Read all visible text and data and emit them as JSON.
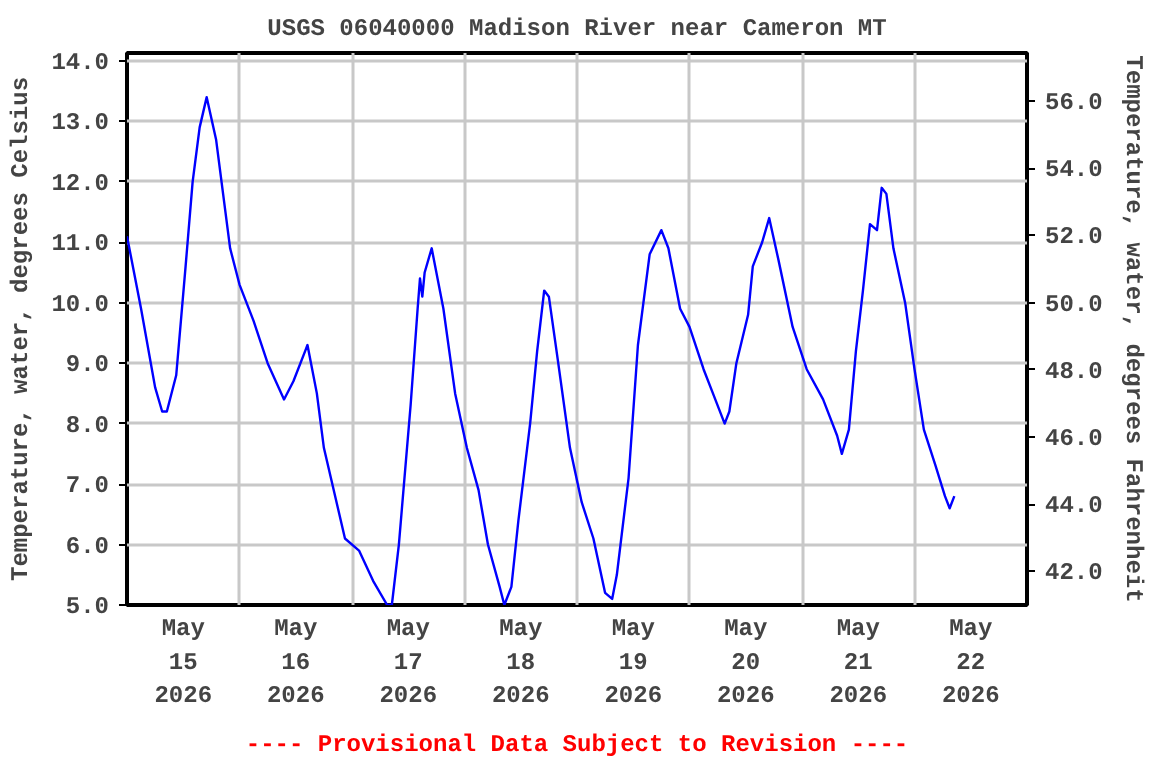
{
  "chart_data": {
    "type": "line",
    "title": "USGS 06040000 Madison River near Cameron MT",
    "ylabel": "Temperature, water, degrees Celsius",
    "y2label": "Temperature, water, degrees Fahrenheit",
    "annotations": [
      "---- Provisional Data Subject to Revision ----"
    ],
    "x": [
      "2026-05-15T00:00",
      "2026-05-15T03:00",
      "2026-05-15T06:00",
      "2026-05-15T07:30",
      "2026-05-15T08:30",
      "2026-05-15T10:30",
      "2026-05-15T12:30",
      "2026-05-15T14:00",
      "2026-05-15T15:30",
      "2026-05-15T17:00",
      "2026-05-15T19:00",
      "2026-05-15T22:00",
      "2026-05-16T00:00",
      "2026-05-16T03:00",
      "2026-05-16T06:00",
      "2026-05-16T09:30",
      "2026-05-16T11:30",
      "2026-05-16T14:00",
      "2026-05-16T14:30",
      "2026-05-16T16:30",
      "2026-05-16T18:00",
      "2026-05-16T21:00",
      "2026-05-16T22:30",
      "2026-05-17T01:30",
      "2026-05-17T04:30",
      "2026-05-17T07:30",
      "2026-05-17T08:30",
      "2026-05-17T10:00",
      "2026-05-17T12:30",
      "2026-05-17T14:00",
      "2026-05-17T14:30",
      "2026-05-17T15:00",
      "2026-05-17T15:30",
      "2026-05-17T17:00",
      "2026-05-17T19:30",
      "2026-05-17T22:00",
      "2026-05-18T00:30",
      "2026-05-18T03:00",
      "2026-05-18T05:00",
      "2026-05-18T07:30",
      "2026-05-18T08:30",
      "2026-05-18T10:00",
      "2026-05-18T11:30",
      "2026-05-18T14:00",
      "2026-05-18T15:30",
      "2026-05-18T17:00",
      "2026-05-18T18:00",
      "2026-05-18T20:00",
      "2026-05-18T22:30",
      "2026-05-19T01:00",
      "2026-05-19T03:30",
      "2026-05-19T06:00",
      "2026-05-19T07:30",
      "2026-05-19T08:30",
      "2026-05-19T11:00",
      "2026-05-19T13:00",
      "2026-05-19T15:30",
      "2026-05-19T18:00",
      "2026-05-19T19:30",
      "2026-05-19T22:00",
      "2026-05-20T00:00",
      "2026-05-20T03:00",
      "2026-05-20T05:00",
      "2026-05-20T07:30",
      "2026-05-20T08:30",
      "2026-05-20T10:00",
      "2026-05-20T12:30",
      "2026-05-20T13:30",
      "2026-05-20T15:30",
      "2026-05-20T17:00",
      "2026-05-20T19:00",
      "2026-05-20T22:00",
      "2026-05-21T01:00",
      "2026-05-21T04:30",
      "2026-05-21T07:30",
      "2026-05-21T08:30",
      "2026-05-21T10:00",
      "2026-05-21T11:30",
      "2026-05-21T13:00",
      "2026-05-21T14:30",
      "2026-05-21T16:00",
      "2026-05-21T17:00",
      "2026-05-21T18:00",
      "2026-05-21T19:30",
      "2026-05-21T22:00",
      "2026-05-22T00:00",
      "2026-05-22T02:00",
      "2026-05-22T04:30",
      "2026-05-22T06:30",
      "2026-05-22T07:30",
      "2026-05-22T08:30"
    ],
    "series": [
      {
        "color": "#0000ff",
        "values": [
          11.1,
          9.9,
          8.6,
          8.2,
          8.2,
          8.8,
          10.6,
          12.0,
          12.9,
          13.4,
          12.7,
          10.9,
          10.3,
          9.7,
          9.0,
          8.4,
          8.7,
          9.2,
          9.3,
          8.5,
          7.6,
          6.6,
          6.1,
          5.9,
          5.4,
          5.0,
          5.0,
          6.0,
          8.3,
          9.9,
          10.4,
          10.1,
          10.5,
          10.9,
          9.9,
          8.5,
          7.6,
          6.9,
          6.0,
          5.3,
          5.0,
          5.3,
          6.4,
          8.0,
          9.2,
          10.2,
          10.1,
          9.0,
          7.6,
          6.7,
          6.1,
          5.2,
          5.1,
          5.5,
          7.1,
          9.3,
          10.8,
          11.2,
          10.9,
          9.9,
          9.6,
          8.9,
          8.5,
          8.0,
          8.2,
          9.0,
          9.8,
          10.6,
          11.0,
          11.4,
          10.7,
          9.6,
          8.9,
          8.4,
          7.8,
          7.5,
          7.9,
          9.2,
          10.2,
          11.3,
          11.2,
          11.9,
          11.8,
          10.9,
          10.0,
          8.9,
          7.9,
          7.3,
          6.8,
          6.6,
          6.8
        ]
      }
    ],
    "xlim": [
      "2026-05-15T00:00",
      "2026-05-23T00:00"
    ],
    "xticks": [
      {
        "value": "2026-05-15T00:00",
        "label": null
      },
      {
        "value": "2026-05-15T12:00",
        "label": "May\n15\n2026"
      },
      {
        "value": "2026-05-16T00:00",
        "label": null
      },
      {
        "value": "2026-05-16T12:00",
        "label": "May\n16\n2026"
      },
      {
        "value": "2026-05-17T00:00",
        "label": null
      },
      {
        "value": "2026-05-17T12:00",
        "label": "May\n17\n2026"
      },
      {
        "value": "2026-05-18T00:00",
        "label": null
      },
      {
        "value": "2026-05-18T12:00",
        "label": "May\n18\n2026"
      },
      {
        "value": "2026-05-19T00:00",
        "label": null
      },
      {
        "value": "2026-05-19T12:00",
        "label": "May\n19\n2026"
      },
      {
        "value": "2026-05-20T00:00",
        "label": null
      },
      {
        "value": "2026-05-20T12:00",
        "label": "May\n20\n2026"
      },
      {
        "value": "2026-05-21T00:00",
        "label": null
      },
      {
        "value": "2026-05-21T12:00",
        "label": "May\n21\n2026"
      },
      {
        "value": "2026-05-22T00:00",
        "label": null
      },
      {
        "value": "2026-05-22T12:00",
        "label": "May\n22\n2026"
      },
      {
        "value": "2026-05-23T00:00",
        "label": null
      }
    ],
    "ylim": [
      5,
      14.13
    ],
    "yticks": [
      {
        "value": 5,
        "label": "5.0"
      },
      {
        "value": 6,
        "label": "6.0"
      },
      {
        "value": 7,
        "label": "7.0"
      },
      {
        "value": 8,
        "label": "8.0"
      },
      {
        "value": 9,
        "label": "9.0"
      },
      {
        "value": 10,
        "label": "10.0"
      },
      {
        "value": 11,
        "label": "11.0"
      },
      {
        "value": 12,
        "label": "12.0"
      },
      {
        "value": 13,
        "label": "13.0"
      },
      {
        "value": 14,
        "label": "14.0"
      }
    ],
    "y2lim": [
      41.0,
      57.43
    ],
    "y2ticks": [
      {
        "value": 42,
        "label": "42.0"
      },
      {
        "value": 44,
        "label": "44.0"
      },
      {
        "value": 46,
        "label": "46.0"
      },
      {
        "value": 48,
        "label": "48.0"
      },
      {
        "value": 50,
        "label": "50.0"
      },
      {
        "value": 52,
        "label": "52.0"
      },
      {
        "value": 54,
        "label": "54.0"
      },
      {
        "value": 56,
        "label": "56.0"
      }
    ],
    "grid": true
  }
}
